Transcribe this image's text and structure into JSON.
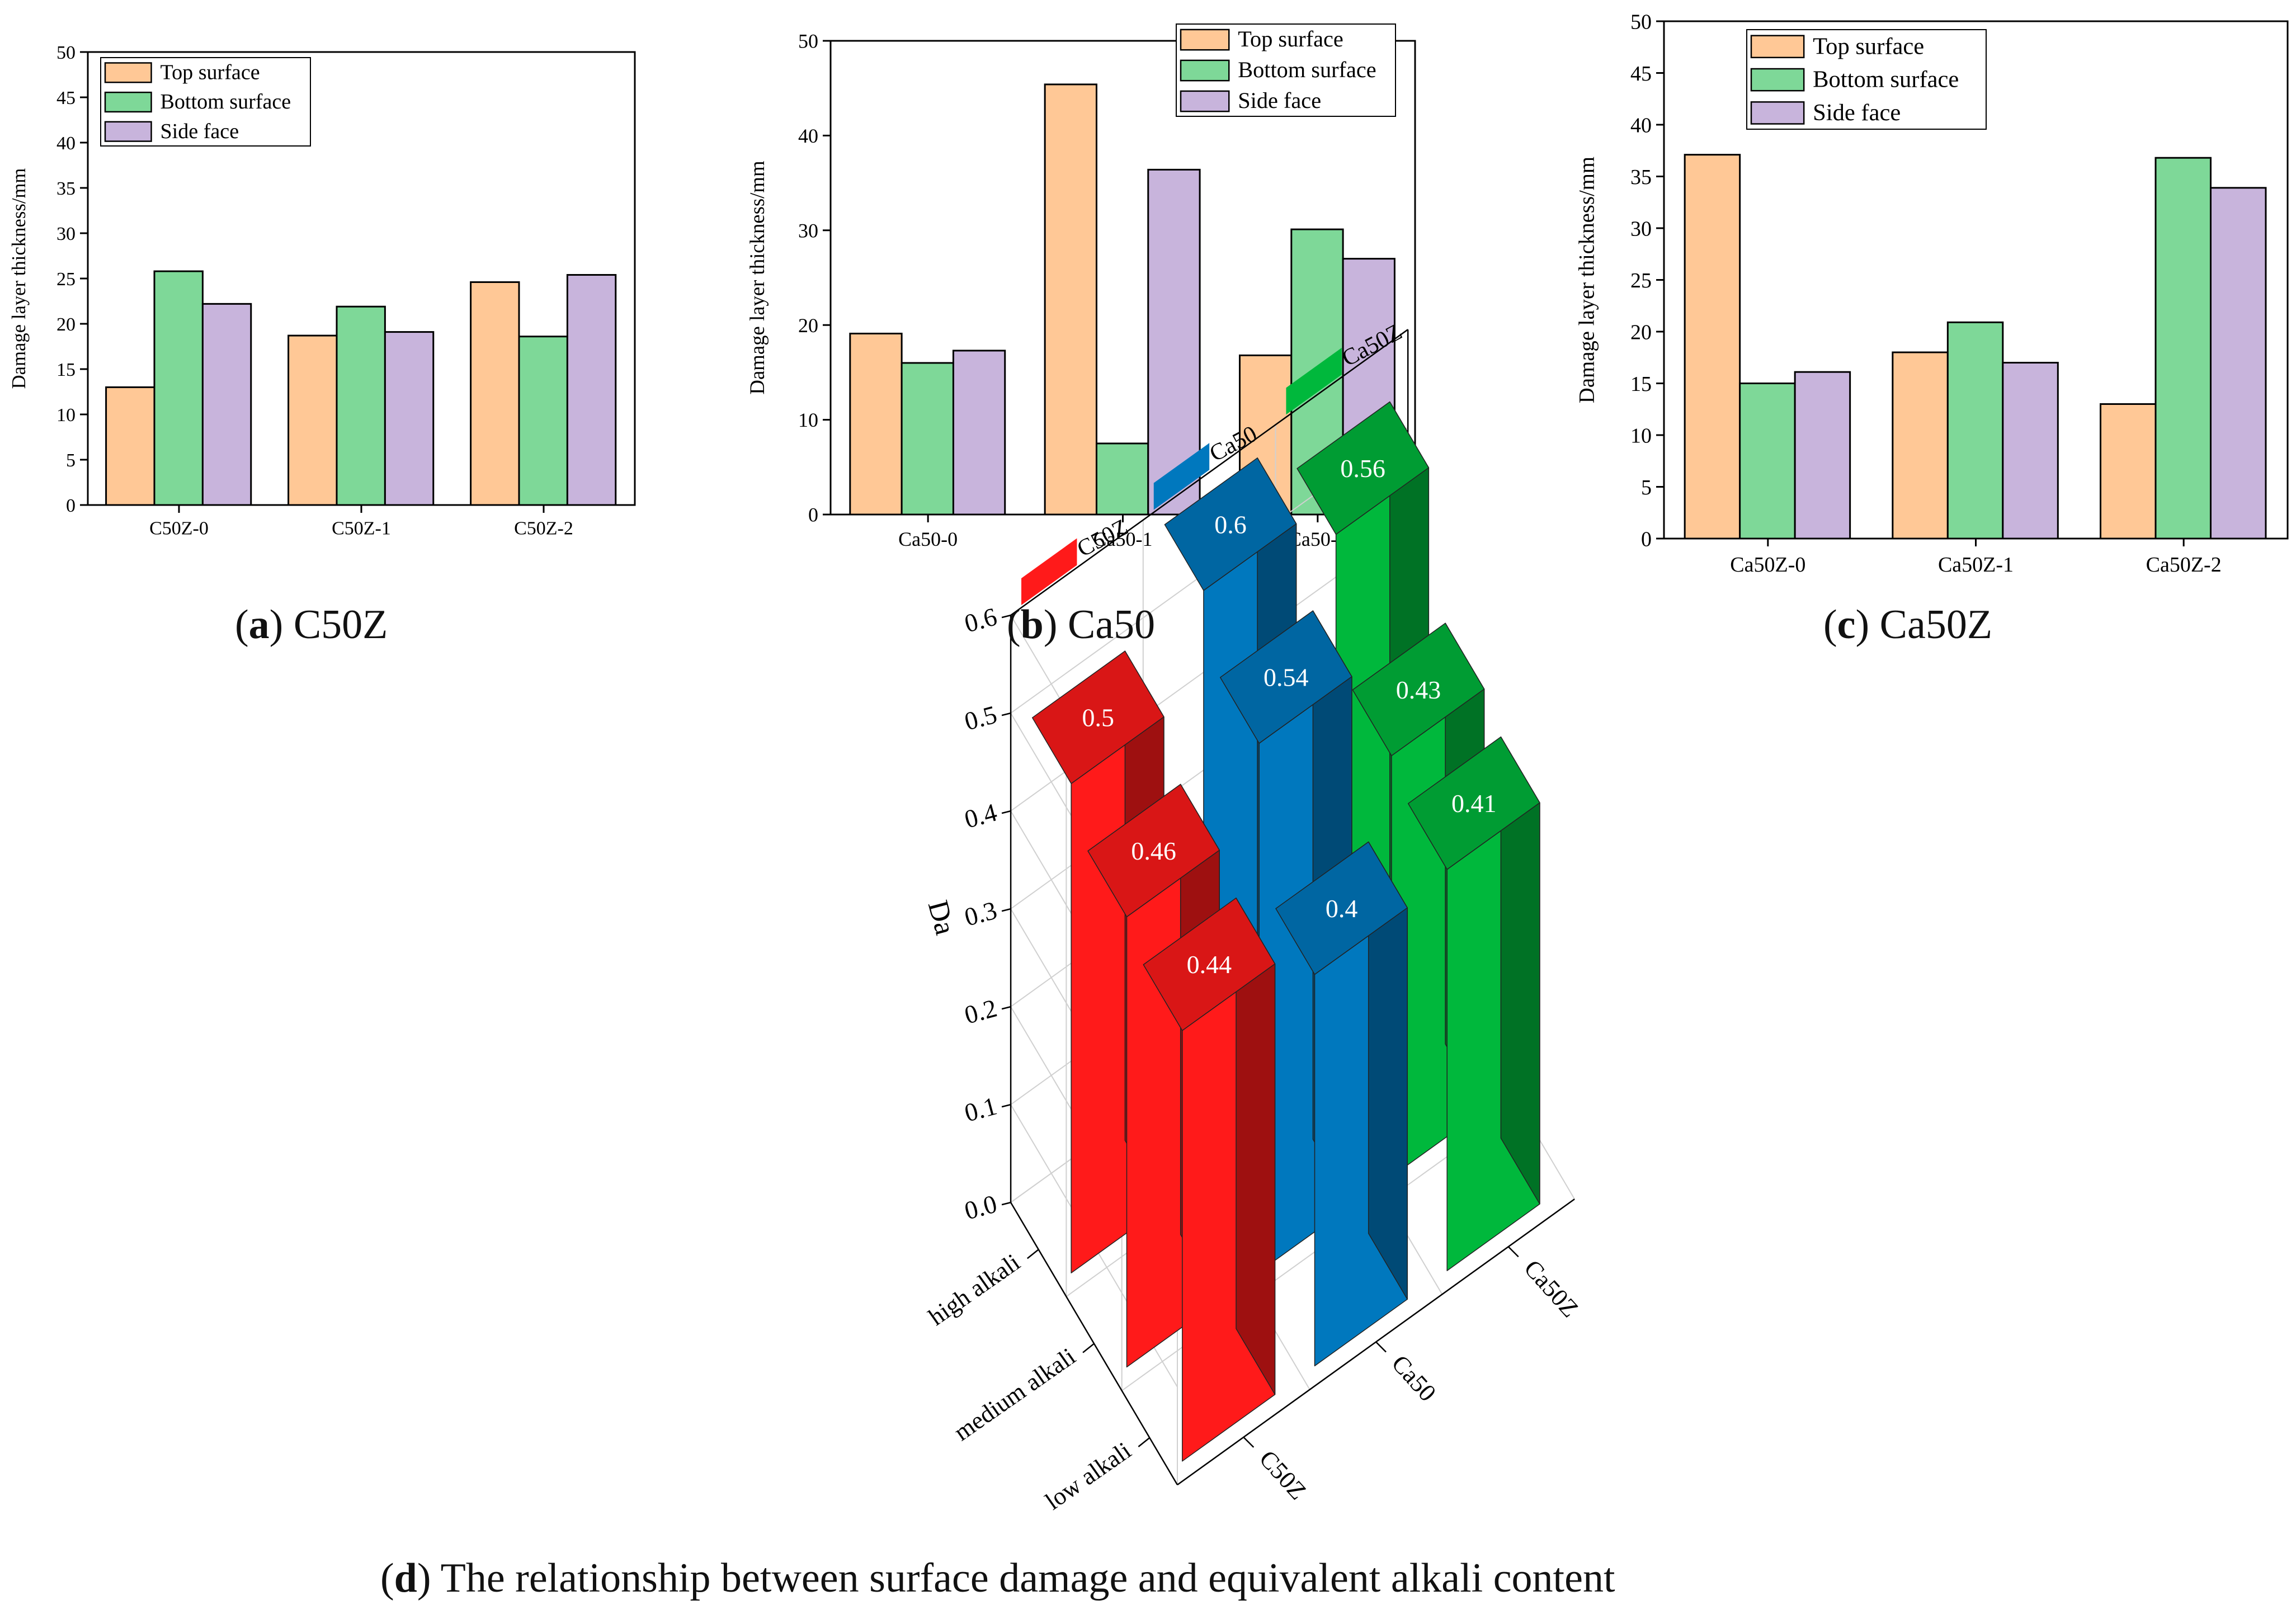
{
  "colors": {
    "top": "#FFC896",
    "bottom": "#7ED898",
    "side": "#C8B4DC",
    "red": "#FF1A1A",
    "blue": "#0078BE",
    "green": "#00B83C"
  },
  "captions": [
    {
      "letter": "a",
      "text": "C50Z"
    },
    {
      "letter": "b",
      "text": "Ca50"
    },
    {
      "letter": "c",
      "text": "Ca50Z"
    },
    {
      "letter": "d",
      "text": "The relationship between surface damage and equivalent alkali content"
    }
  ],
  "chart_data": [
    {
      "type": "bar",
      "id": "a",
      "ylabel": "Damage layer thickness/mm",
      "ylim": [
        0,
        50
      ],
      "yticks": [
        "0",
        "5",
        "10",
        "15",
        "20",
        "25",
        "30",
        "35",
        "40",
        "45",
        "50"
      ],
      "categories": [
        "C50Z-0",
        "C50Z-1",
        "C50Z-2"
      ],
      "legend_position": "top-left",
      "series": [
        {
          "name": "Top surface",
          "color": "#FFC896",
          "values": [
            13.0,
            18.7,
            24.6
          ]
        },
        {
          "name": "Bottom surface",
          "color": "#7ED898",
          "values": [
            25.8,
            21.9,
            18.6
          ]
        },
        {
          "name": "Side face",
          "color": "#C8B4DC",
          "values": [
            22.2,
            19.1,
            25.4
          ]
        }
      ]
    },
    {
      "type": "bar",
      "id": "b",
      "ylabel": "Damage layer thickness/mm",
      "ylim": [
        0,
        50
      ],
      "yticks": [
        "0",
        "10",
        "20",
        "30",
        "40",
        "50"
      ],
      "categories": [
        "Ca50-0",
        "Ca50-1",
        "Ca50-2"
      ],
      "legend_position": "top-right",
      "series": [
        {
          "name": "Top surface",
          "color": "#FFC896",
          "values": [
            19.1,
            45.4,
            16.8
          ]
        },
        {
          "name": "Bottom surface",
          "color": "#7ED898",
          "values": [
            16.0,
            7.5,
            30.1
          ]
        },
        {
          "name": "Side face",
          "color": "#C8B4DC",
          "values": [
            17.3,
            36.4,
            27.0
          ]
        }
      ]
    },
    {
      "type": "bar",
      "id": "c",
      "ylabel": "Damage layer thickness/mm",
      "ylim": [
        0,
        50
      ],
      "yticks": [
        "0",
        "5",
        "10",
        "15",
        "20",
        "25",
        "30",
        "35",
        "40",
        "45",
        "50"
      ],
      "categories": [
        "Ca50Z-0",
        "Ca50Z-1",
        "Ca50Z-2"
      ],
      "legend_position": "top-left",
      "series": [
        {
          "name": "Top surface",
          "color": "#FFC896",
          "values": [
            37.1,
            18.0,
            13.0
          ]
        },
        {
          "name": "Bottom surface",
          "color": "#7ED898",
          "values": [
            15.0,
            20.9,
            36.8
          ]
        },
        {
          "name": "Side face",
          "color": "#C8B4DC",
          "values": [
            16.1,
            17.0,
            33.9
          ]
        }
      ]
    },
    {
      "type": "bar3d",
      "id": "d",
      "zlabel": "Da",
      "zlim": [
        0,
        0.6
      ],
      "zticks": [
        "0.0",
        "0.1",
        "0.2",
        "0.3",
        "0.4",
        "0.5",
        "0.6"
      ],
      "rows": [
        "high alkali",
        "medium alkali",
        "low alkali"
      ],
      "columns": [
        "C50Z",
        "Ca50",
        "Ca50Z"
      ],
      "legend": [
        "C50Z",
        "Ca50",
        "Ca50Z"
      ],
      "values": {
        "C50Z": {
          "high alkali": 0.5,
          "medium alkali": 0.46,
          "low alkali": 0.44
        },
        "Ca50": {
          "high alkali": 0.6,
          "medium alkali": 0.54,
          "low alkali": 0.4
        },
        "Ca50Z": {
          "high alkali": 0.56,
          "medium alkali": 0.43,
          "low alkali": 0.41
        }
      },
      "labels": {
        "C50Z": {
          "high alkali": "0.5",
          "medium alkali": "0.46",
          "low alkali": "0.44"
        },
        "Ca50": {
          "high alkali": "0.6",
          "medium alkali": "0.54",
          "low alkali": "0.4"
        },
        "Ca50Z": {
          "high alkali": "0.56",
          "medium alkali": "0.43",
          "low alkali": "0.41"
        }
      }
    }
  ]
}
